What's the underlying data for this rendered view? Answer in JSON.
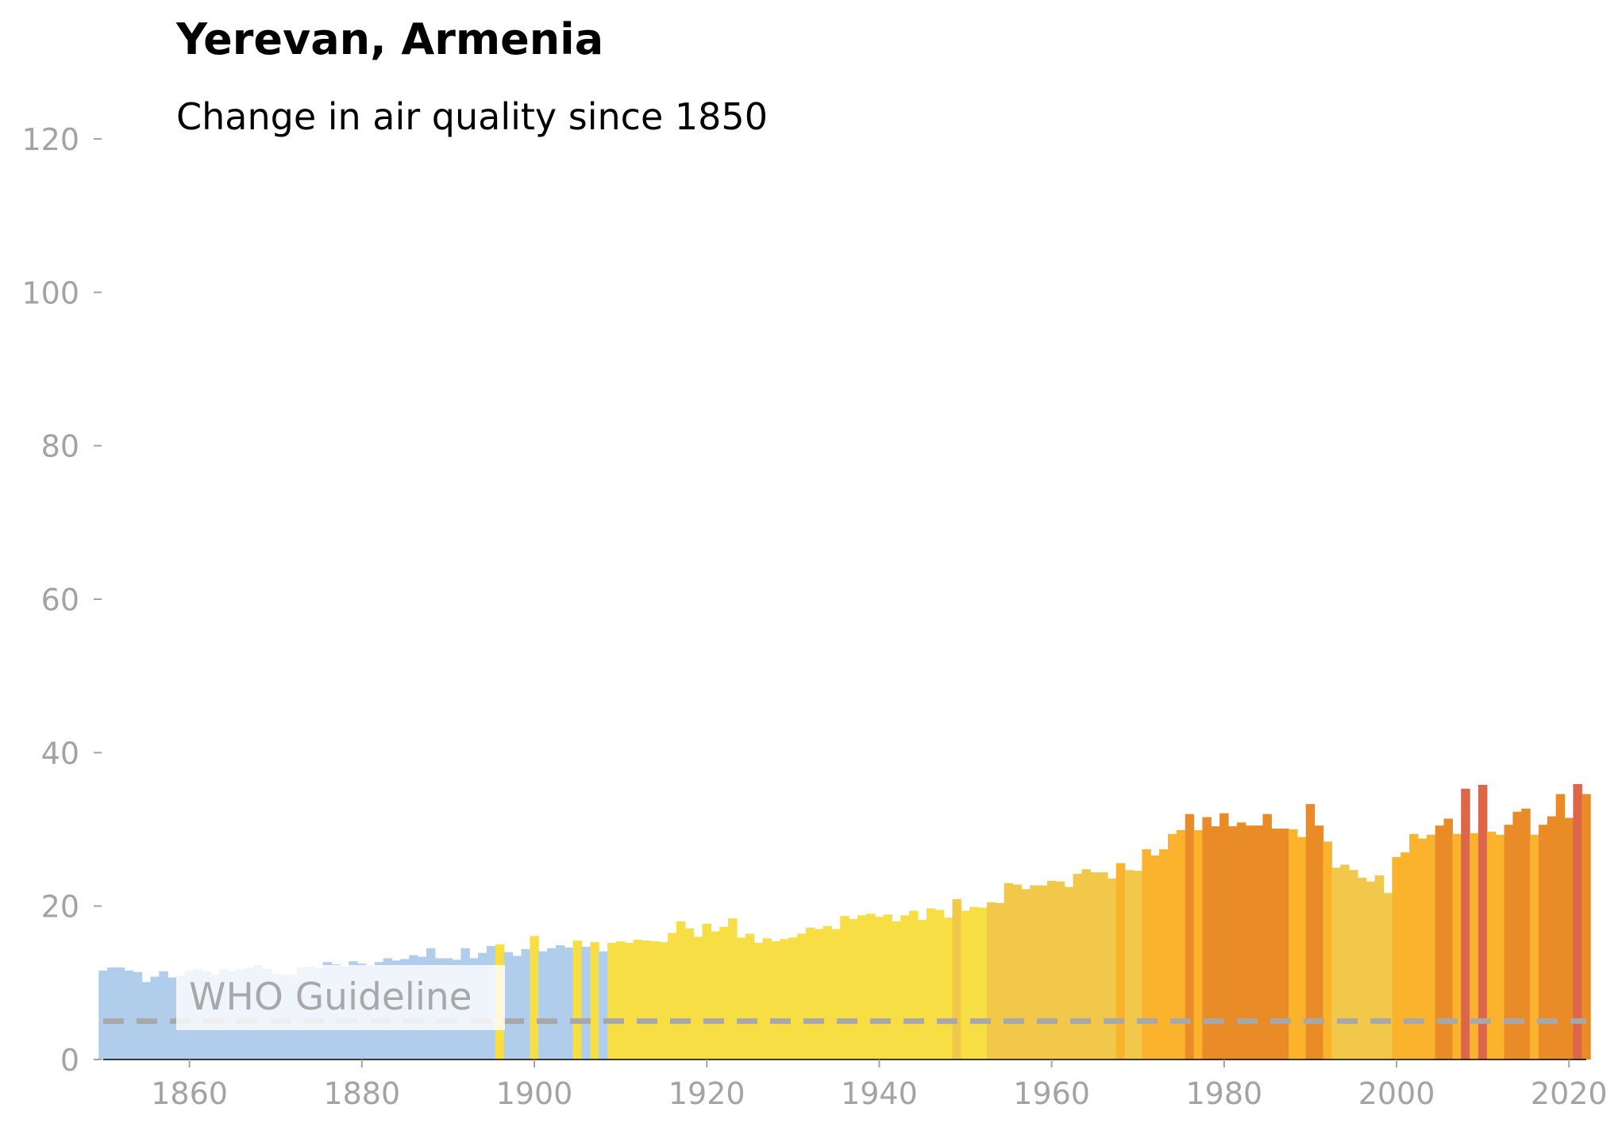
{
  "chart_data": {
    "type": "bar",
    "title": "Yerevan, Armenia",
    "subtitle": "Change in air quality since 1850",
    "xlabel": "",
    "ylabel": "",
    "x_start": 1850,
    "xlim": [
      1850,
      2022
    ],
    "ylim": [
      0,
      120
    ],
    "xticks": [
      "1860",
      "1880",
      "1900",
      "1920",
      "1940",
      "1960",
      "1980",
      "2000",
      "2020"
    ],
    "yticks": [
      "0",
      "20",
      "40",
      "60",
      "80",
      "100",
      "120"
    ],
    "guideline": {
      "label": "WHO Guideline",
      "value": 5
    },
    "values": [
      11.6,
      12.0,
      12.0,
      11.6,
      11.4,
      10.1,
      10.8,
      11.5,
      10.7,
      10.9,
      11.6,
      11.8,
      11.5,
      11.1,
      11.8,
      11.5,
      11.8,
      12.0,
      12.3,
      11.8,
      11.2,
      11.1,
      11.1,
      12.0,
      12.1,
      11.9,
      12.7,
      12.4,
      12.1,
      12.8,
      12.5,
      12.2,
      12.7,
      13.2,
      12.9,
      13.1,
      13.6,
      13.4,
      14.5,
      13.2,
      13.2,
      13.0,
      14.5,
      13.2,
      13.9,
      14.8,
      15.0,
      14.0,
      13.5,
      14.4,
      16.1,
      14.1,
      14.5,
      14.9,
      14.6,
      15.5,
      14.7,
      15.3,
      14.1,
      15.2,
      15.4,
      15.2,
      15.6,
      15.5,
      15.4,
      15.3,
      16.5,
      18.0,
      17.1,
      16.0,
      17.7,
      16.7,
      17.3,
      18.4,
      15.9,
      16.4,
      15.2,
      15.8,
      15.4,
      15.7,
      15.9,
      16.4,
      17.2,
      17.0,
      17.4,
      17.0,
      18.7,
      18.3,
      18.8,
      19.0,
      18.6,
      18.9,
      18.0,
      18.8,
      19.4,
      18.2,
      19.7,
      19.5,
      18.5,
      20.9,
      19.4,
      19.9,
      19.8,
      20.5,
      20.4,
      23.0,
      22.8,
      22.2,
      22.7,
      22.7,
      23.3,
      23.2,
      22.5,
      24.2,
      24.8,
      24.4,
      24.4,
      23.6,
      25.6,
      24.7,
      24.6,
      27.4,
      26.6,
      27.4,
      29.4,
      29.9,
      32.0,
      29.9,
      31.6,
      30.4,
      32.1,
      30.4,
      30.9,
      30.5,
      30.5,
      32.0,
      30.1,
      30.1,
      30.0,
      29.0,
      33.3,
      30.5,
      28.4,
      25.0,
      25.4,
      24.7,
      23.7,
      23.2,
      24.0,
      21.7,
      26.4,
      27.0,
      29.4,
      28.8,
      29.3,
      30.5,
      31.4,
      29.4,
      35.3,
      29.5,
      35.8,
      29.7,
      29.3,
      30.6,
      32.3,
      32.7,
      29.3,
      30.6,
      31.7,
      34.6,
      31.5,
      35.9,
      34.6
    ],
    "color_classes": [
      1,
      1,
      1,
      1,
      1,
      1,
      1,
      1,
      1,
      1,
      1,
      1,
      1,
      1,
      1,
      1,
      1,
      1,
      1,
      1,
      1,
      1,
      1,
      1,
      1,
      1,
      1,
      1,
      1,
      1,
      1,
      1,
      1,
      1,
      1,
      1,
      1,
      1,
      1,
      1,
      1,
      1,
      1,
      1,
      1,
      1,
      2,
      1,
      1,
      1,
      2,
      1,
      1,
      1,
      1,
      2,
      1,
      2,
      1,
      2,
      2,
      2,
      2,
      2,
      2,
      2,
      2,
      2,
      2,
      2,
      2,
      2,
      2,
      2,
      2,
      2,
      2,
      2,
      2,
      2,
      2,
      2,
      2,
      2,
      2,
      2,
      2,
      2,
      2,
      2,
      2,
      2,
      2,
      2,
      2,
      2,
      2,
      2,
      2,
      3,
      2,
      2,
      2,
      3,
      3,
      3,
      3,
      3,
      3,
      3,
      3,
      3,
      3,
      3,
      3,
      3,
      3,
      3,
      4,
      3,
      3,
      4,
      4,
      4,
      4,
      4,
      5,
      4,
      5,
      5,
      5,
      5,
      5,
      5,
      5,
      5,
      5,
      5,
      4,
      4,
      5,
      5,
      4,
      3,
      3,
      3,
      3,
      3,
      3,
      3,
      4,
      4,
      4,
      4,
      4,
      5,
      5,
      4,
      6,
      4,
      6,
      4,
      4,
      5,
      5,
      5,
      4,
      5,
      5,
      5,
      5,
      6,
      5
    ],
    "palette": {
      "1": "#b0cdeb",
      "2": "#f7de45",
      "3": "#f2c84b",
      "4": "#fbb32e",
      "5": "#e98b26",
      "6": "#dc6648"
    },
    "guideline_color": "#a8a8a8",
    "axis_text_color": "#a3a3a3",
    "legend": "none",
    "grid": false
  }
}
